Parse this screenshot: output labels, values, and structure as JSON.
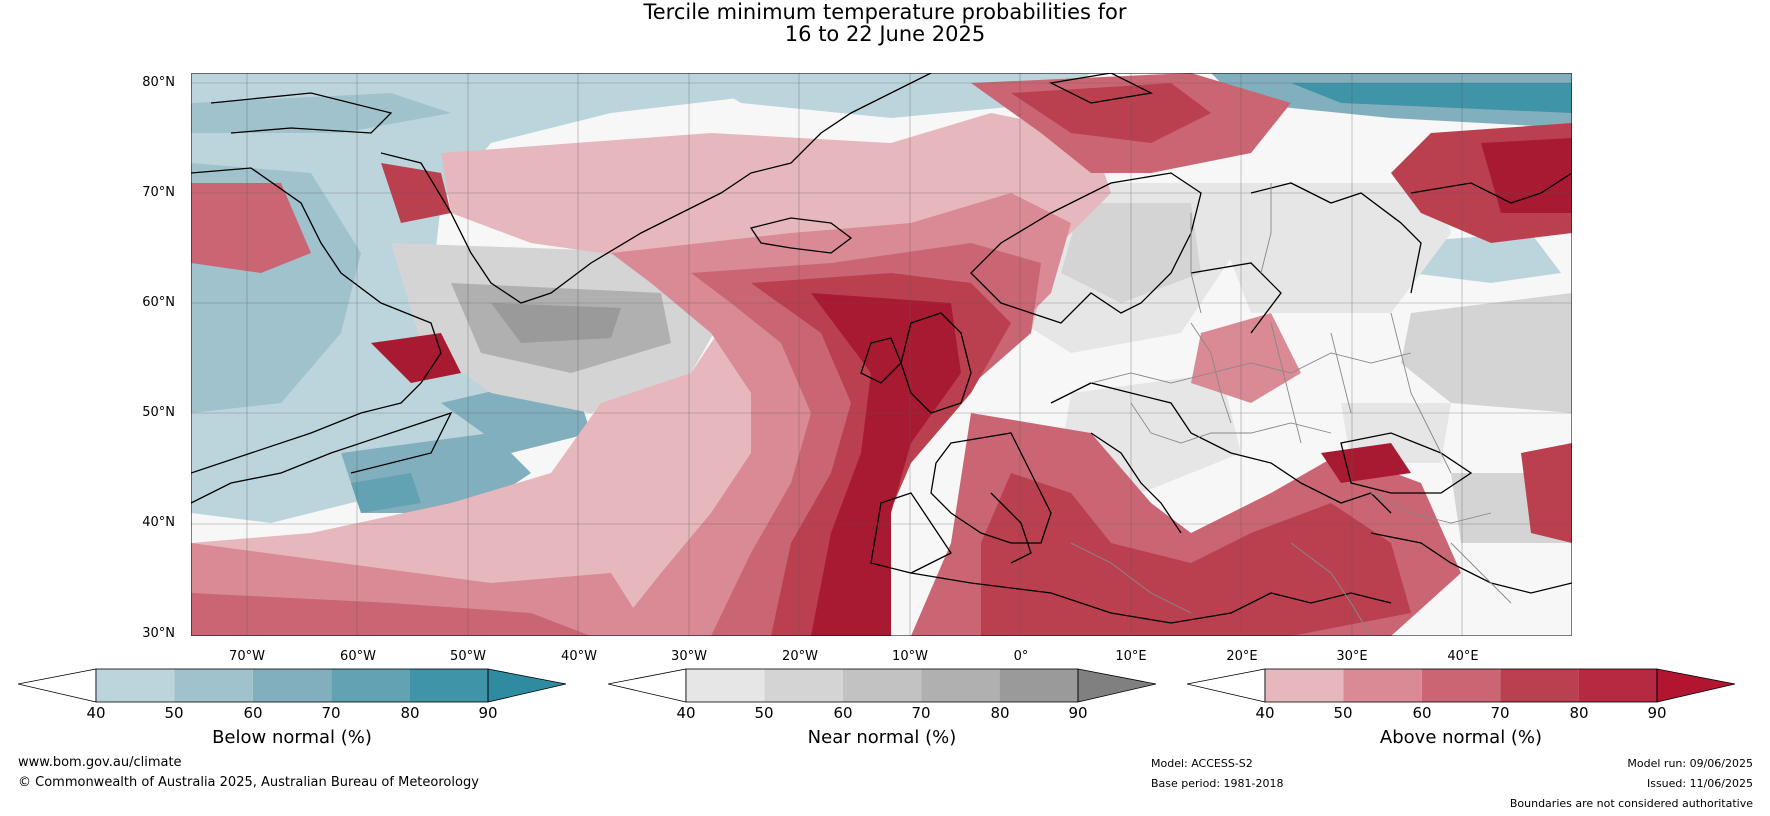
{
  "title": {
    "line1": "Tercile minimum temperature probabilities for",
    "line2": "16 to 22 June 2025"
  },
  "map": {
    "lat_labels": [
      "80°N",
      "70°N",
      "60°N",
      "50°N",
      "40°N",
      "30°N"
    ],
    "lon_labels": [
      "70°W",
      "60°W",
      "50°W",
      "40°W",
      "30°W",
      "20°W",
      "10°W",
      "0°",
      "10°E",
      "20°E",
      "30°E",
      "40°E"
    ],
    "colors": {
      "above": [
        "#e6b7bd",
        "#d98a94",
        "#ca6673",
        "#bb404f",
        "#a81a32"
      ],
      "near": [
        "#e6e6e6",
        "#d4d4d4",
        "#c2c2c2",
        "#b0b0b0",
        "#9a9a9a"
      ],
      "below": [
        "#bcd5dc",
        "#9fc2cc",
        "#82afbd",
        "#62a2b2",
        "#3f94a8"
      ],
      "coast": "#000000",
      "borders": "#888888"
    }
  },
  "colorbars": [
    {
      "key": "below",
      "title": "Below normal (%)",
      "ticks": [
        "40",
        "50",
        "60",
        "70",
        "80",
        "90"
      ],
      "colors": [
        "#bcd5dc",
        "#9fc2cc",
        "#82afbd",
        "#62a2b2",
        "#3f94a8"
      ],
      "extend_color": "#2e8ba0"
    },
    {
      "key": "near",
      "title": "Near normal (%)",
      "ticks": [
        "40",
        "50",
        "60",
        "70",
        "80",
        "90"
      ],
      "colors": [
        "#e6e6e6",
        "#d4d4d4",
        "#c2c2c2",
        "#b0b0b0",
        "#9a9a9a"
      ],
      "extend_color": "#808080"
    },
    {
      "key": "above",
      "title": "Above normal (%)",
      "ticks": [
        "40",
        "50",
        "60",
        "70",
        "80",
        "90"
      ],
      "colors": [
        "#e6b7bd",
        "#d98a94",
        "#ca6673",
        "#bb404f",
        "#b52a40"
      ],
      "extend_color": "#b21530"
    }
  ],
  "footer": {
    "website": "www.bom.gov.au/climate",
    "copyright": "© Commonwealth of Australia 2025, Australian Bureau of Meteorology",
    "model": "Model: ACCESS-S2",
    "base_period": "Base period: 1981-2018",
    "model_run": "Model run: 09/06/2025",
    "issued": "Issued: 11/06/2025",
    "disclaimer": "Boundaries are not considered authoritative"
  }
}
